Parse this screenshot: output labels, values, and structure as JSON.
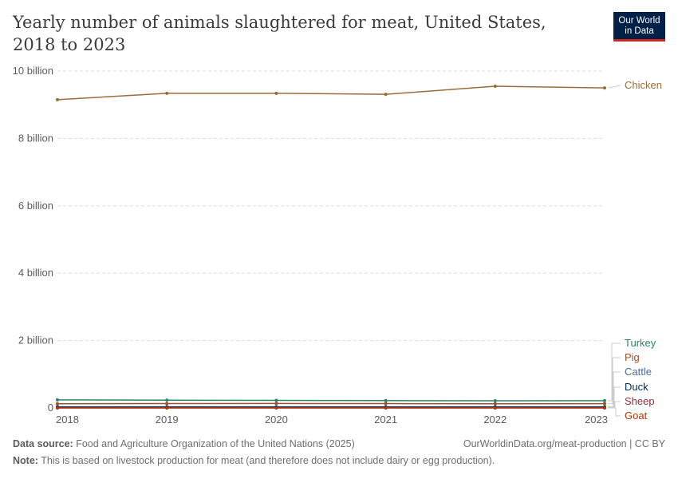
{
  "title": "Yearly number of animals slaughtered for meat, United States, 2018 to 2023",
  "logo": {
    "line1": "Our World",
    "line2": "in Data"
  },
  "footer": {
    "source_label": "Data source:",
    "source": "Food and Agriculture Organization of the United Nations (2025)",
    "url": "OurWorldinData.org/meat-production | CC BY",
    "note_label": "Note:",
    "note": "This is based on livestock production for meat (and therefore does not include dairy or egg production)."
  },
  "chart_data": {
    "type": "line",
    "title": "Yearly number of animals slaughtered for meat, United States, 2018 to 2023",
    "x": [
      2018,
      2019,
      2020,
      2021,
      2022,
      2023
    ],
    "ylim": [
      0,
      10000000000
    ],
    "yticks": [
      {
        "v": 0,
        "label": "0"
      },
      {
        "v": 2000000000,
        "label": "2 billion"
      },
      {
        "v": 4000000000,
        "label": "4 billion"
      },
      {
        "v": 6000000000,
        "label": "6 billion"
      },
      {
        "v": 8000000000,
        "label": "8 billion"
      },
      {
        "v": 10000000000,
        "label": "10 billion"
      }
    ],
    "grid": true,
    "legend": "right-end labels",
    "series": [
      {
        "name": "Chicken",
        "color": "#996d39",
        "values": [
          9150000000,
          9340000000,
          9340000000,
          9310000000,
          9550000000,
          9500000000
        ]
      },
      {
        "name": "Turkey",
        "color": "#2c8465",
        "values": [
          240000000,
          230000000,
          225000000,
          218000000,
          212000000,
          215000000
        ]
      },
      {
        "name": "Pig",
        "color": "#9a5129",
        "values": [
          124000000,
          130000000,
          132000000,
          129000000,
          125000000,
          127000000
        ]
      },
      {
        "name": "Cattle",
        "color": "#4c6a9c",
        "values": [
          33000000,
          33000000,
          33000000,
          34000000,
          34000000,
          32000000
        ]
      },
      {
        "name": "Duck",
        "color": "#00295b",
        "values": [
          28000000,
          28000000,
          27000000,
          27000000,
          26000000,
          26000000
        ]
      },
      {
        "name": "Sheep",
        "color": "#883039",
        "values": [
          2200000,
          2200000,
          2100000,
          2000000,
          1900000,
          1800000
        ]
      },
      {
        "name": "Goat",
        "color": "#b13507",
        "values": [
          600000,
          600000,
          600000,
          600000,
          600000,
          600000
        ]
      }
    ]
  }
}
